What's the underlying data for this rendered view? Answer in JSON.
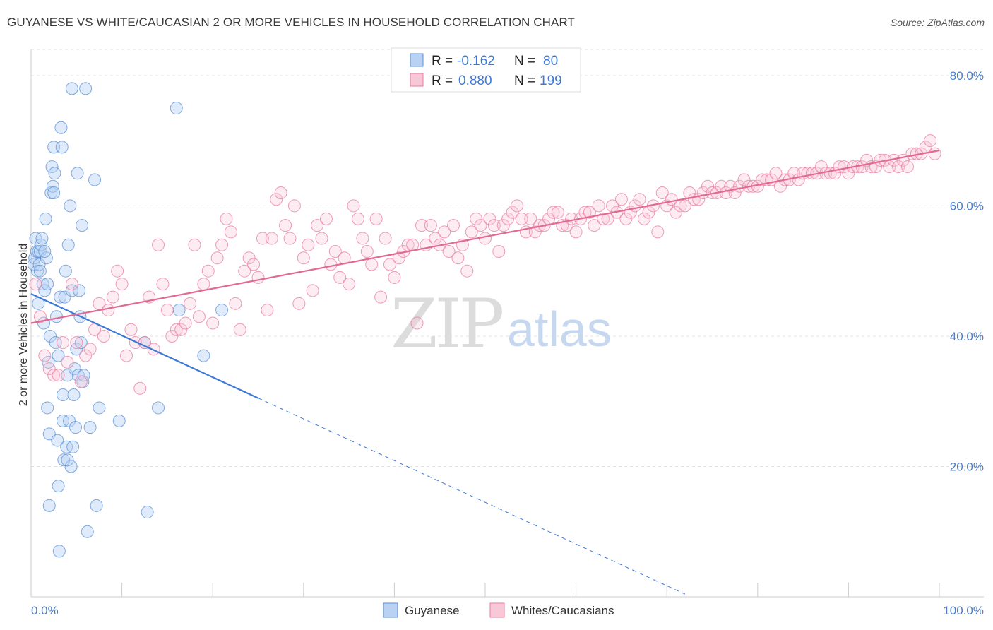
{
  "title": "GUYANESE VS WHITE/CAUCASIAN 2 OR MORE VEHICLES IN HOUSEHOLD CORRELATION CHART",
  "source": "Source: ZipAtlas.com",
  "watermark": {
    "zip": "ZIP",
    "atlas": "atlas"
  },
  "legend_top": [
    {
      "r_label": "R =",
      "r_value": "-0.162",
      "n_label": "N =",
      "n_value": "80",
      "color": "#5b8fd6"
    },
    {
      "r_label": "R =",
      "r_value": "0.880",
      "n_label": "N =",
      "n_value": "199",
      "color": "#e97ba0"
    }
  ],
  "legend_bottom": [
    {
      "label": "Guyanese",
      "color": "#5b8fd6"
    },
    {
      "label": "Whites/Caucasians",
      "color": "#e97ba0"
    }
  ],
  "chart_data": {
    "type": "scatter",
    "xlabel": "",
    "ylabel": "2 or more Vehicles in Household",
    "xlim": [
      0,
      100
    ],
    "ylim": [
      0,
      84
    ],
    "x_tick_labels": [
      "0.0%",
      "100.0%"
    ],
    "y_ticks": [
      20,
      40,
      60,
      80
    ],
    "y_tick_labels": [
      "20.0%",
      "40.0%",
      "60.0%",
      "80.0%"
    ],
    "grid": true,
    "series": [
      {
        "name": "Guyanese",
        "color": "#5b8fd6",
        "trend": {
          "x0": 0,
          "y0": 46.5,
          "x1": 25,
          "y1": 30.5,
          "dashed_to_x": 72
        },
        "points": [
          [
            0.3,
            51
          ],
          [
            0.4,
            52
          ],
          [
            0.5,
            55
          ],
          [
            0.6,
            53
          ],
          [
            0.7,
            50
          ],
          [
            0.8,
            53
          ],
          [
            0.9,
            51
          ],
          [
            1.0,
            53
          ],
          [
            1.1,
            54
          ],
          [
            1.2,
            55
          ],
          [
            1.3,
            48
          ],
          [
            1.4,
            42
          ],
          [
            1.5,
            47
          ],
          [
            1.6,
            58
          ],
          [
            1.7,
            52
          ],
          [
            1.8,
            48
          ],
          [
            1.9,
            36
          ],
          [
            2.0,
            25
          ],
          [
            2.1,
            40
          ],
          [
            2.2,
            62
          ],
          [
            2.3,
            66
          ],
          [
            2.4,
            63
          ],
          [
            2.5,
            69
          ],
          [
            2.6,
            65
          ],
          [
            2.7,
            39
          ],
          [
            2.8,
            43
          ],
          [
            2.9,
            24
          ],
          [
            3.0,
            17
          ],
          [
            3.1,
            7
          ],
          [
            3.2,
            46
          ],
          [
            3.3,
            72
          ],
          [
            3.4,
            69
          ],
          [
            3.5,
            27
          ],
          [
            3.6,
            21
          ],
          [
            3.7,
            46
          ],
          [
            3.8,
            50
          ],
          [
            3.9,
            23
          ],
          [
            4.0,
            34
          ],
          [
            4.1,
            54
          ],
          [
            4.2,
            27
          ],
          [
            4.3,
            60
          ],
          [
            4.4,
            20
          ],
          [
            4.5,
            47
          ],
          [
            4.6,
            23
          ],
          [
            4.7,
            31
          ],
          [
            4.8,
            35
          ],
          [
            4.9,
            26
          ],
          [
            5.0,
            38
          ],
          [
            5.1,
            65
          ],
          [
            5.2,
            34
          ],
          [
            5.3,
            47
          ],
          [
            5.4,
            43
          ],
          [
            5.5,
            39
          ],
          [
            5.6,
            57
          ],
          [
            5.7,
            33
          ],
          [
            5.8,
            34
          ],
          [
            6.0,
            78
          ],
          [
            6.2,
            10
          ],
          [
            6.5,
            26
          ],
          [
            7.0,
            64
          ],
          [
            7.2,
            14
          ],
          [
            7.5,
            29
          ],
          [
            9.7,
            27
          ],
          [
            12.5,
            39
          ],
          [
            12.8,
            13
          ],
          [
            14,
            29
          ],
          [
            16,
            75
          ],
          [
            16.3,
            44
          ],
          [
            19,
            37
          ],
          [
            21,
            44
          ],
          [
            2.0,
            14
          ],
          [
            1.0,
            50
          ],
          [
            0.8,
            45
          ],
          [
            3.5,
            31
          ],
          [
            4.5,
            78
          ],
          [
            2.5,
            62
          ],
          [
            1.5,
            53
          ],
          [
            3.0,
            37
          ],
          [
            4.0,
            21
          ],
          [
            1.8,
            29
          ]
        ]
      },
      {
        "name": "Whites/Caucasians",
        "color": "#e97ba0",
        "trend": {
          "x0": 0,
          "y0": 42,
          "x1": 100,
          "y1": 68.5
        },
        "points": [
          [
            0.5,
            48
          ],
          [
            1,
            43
          ],
          [
            1.5,
            37
          ],
          [
            2,
            35
          ],
          [
            2.5,
            34
          ],
          [
            3,
            34
          ],
          [
            3.5,
            39
          ],
          [
            4,
            36
          ],
          [
            4.5,
            48
          ],
          [
            5,
            39
          ],
          [
            5.5,
            33
          ],
          [
            6,
            37
          ],
          [
            6.5,
            38
          ],
          [
            7,
            41
          ],
          [
            7.5,
            45
          ],
          [
            8,
            40
          ],
          [
            8.5,
            44
          ],
          [
            9,
            46
          ],
          [
            9.5,
            50
          ],
          [
            10,
            48
          ],
          [
            10.5,
            37
          ],
          [
            11,
            41
          ],
          [
            11.5,
            39
          ],
          [
            12,
            32
          ],
          [
            12.5,
            39
          ],
          [
            13,
            46
          ],
          [
            13.5,
            38
          ],
          [
            14,
            54
          ],
          [
            14.5,
            48
          ],
          [
            15,
            44
          ],
          [
            15.5,
            40
          ],
          [
            16,
            41
          ],
          [
            16.5,
            41
          ],
          [
            17,
            42
          ],
          [
            17.5,
            45
          ],
          [
            18,
            54
          ],
          [
            18.5,
            43
          ],
          [
            19,
            48
          ],
          [
            19.5,
            50
          ],
          [
            20,
            42
          ],
          [
            20.5,
            52
          ],
          [
            21,
            54
          ],
          [
            21.5,
            58
          ],
          [
            22,
            56
          ],
          [
            22.5,
            45
          ],
          [
            23,
            41
          ],
          [
            23.5,
            50
          ],
          [
            24,
            52
          ],
          [
            24.5,
            51
          ],
          [
            25,
            49
          ],
          [
            25.5,
            55
          ],
          [
            26,
            44
          ],
          [
            26.5,
            55
          ],
          [
            27,
            61
          ],
          [
            27.5,
            62
          ],
          [
            28,
            57
          ],
          [
            28.5,
            55
          ],
          [
            29,
            60
          ],
          [
            29.5,
            45
          ],
          [
            30,
            52
          ],
          [
            30.5,
            54
          ],
          [
            31,
            47
          ],
          [
            31.5,
            57
          ],
          [
            32,
            55
          ],
          [
            32.5,
            58
          ],
          [
            33,
            51
          ],
          [
            33.5,
            53
          ],
          [
            34,
            49
          ],
          [
            34.5,
            52
          ],
          [
            35,
            48
          ],
          [
            35.5,
            60
          ],
          [
            36,
            58
          ],
          [
            36.5,
            55
          ],
          [
            37,
            53
          ],
          [
            37.5,
            51
          ],
          [
            38,
            58
          ],
          [
            38.5,
            46
          ],
          [
            39,
            55
          ],
          [
            39.5,
            51
          ],
          [
            40,
            49
          ],
          [
            40.5,
            52
          ],
          [
            41,
            53
          ],
          [
            41.5,
            54
          ],
          [
            42,
            54
          ],
          [
            42.5,
            42
          ],
          [
            43,
            57
          ],
          [
            43.5,
            54
          ],
          [
            44,
            57
          ],
          [
            44.5,
            55
          ],
          [
            45,
            54
          ],
          [
            45.5,
            56
          ],
          [
            46,
            53
          ],
          [
            46.5,
            57
          ],
          [
            47,
            52
          ],
          [
            47.5,
            54
          ],
          [
            48,
            50
          ],
          [
            48.5,
            56
          ],
          [
            49,
            58
          ],
          [
            49.5,
            57
          ],
          [
            50,
            55
          ],
          [
            50.5,
            58
          ],
          [
            51,
            57
          ],
          [
            51.5,
            53
          ],
          [
            52,
            57
          ],
          [
            52.5,
            58
          ],
          [
            53,
            59
          ],
          [
            53.5,
            60
          ],
          [
            54,
            58
          ],
          [
            54.5,
            56
          ],
          [
            55,
            58
          ],
          [
            55.5,
            56
          ],
          [
            56,
            57
          ],
          [
            56.5,
            57
          ],
          [
            57,
            58
          ],
          [
            57.5,
            59
          ],
          [
            58,
            59
          ],
          [
            58.5,
            57
          ],
          [
            59,
            57
          ],
          [
            59.5,
            58
          ],
          [
            60,
            56
          ],
          [
            60.5,
            58
          ],
          [
            61,
            59
          ],
          [
            61.5,
            59
          ],
          [
            62,
            57
          ],
          [
            62.5,
            60
          ],
          [
            63,
            58
          ],
          [
            63.5,
            58
          ],
          [
            64,
            60
          ],
          [
            64.5,
            59
          ],
          [
            65,
            61
          ],
          [
            65.5,
            58
          ],
          [
            66,
            59
          ],
          [
            66.5,
            60
          ],
          [
            67,
            61
          ],
          [
            67.5,
            58
          ],
          [
            68,
            59
          ],
          [
            68.5,
            60
          ],
          [
            69,
            56
          ],
          [
            69.5,
            62
          ],
          [
            70,
            60
          ],
          [
            70.5,
            61
          ],
          [
            71,
            59
          ],
          [
            71.5,
            60
          ],
          [
            72,
            60
          ],
          [
            72.5,
            62
          ],
          [
            73,
            61
          ],
          [
            73.5,
            61
          ],
          [
            74,
            62
          ],
          [
            74.5,
            63
          ],
          [
            75,
            62
          ],
          [
            75.5,
            62
          ],
          [
            76,
            63
          ],
          [
            76.5,
            62
          ],
          [
            77,
            63
          ],
          [
            77.5,
            62
          ],
          [
            78,
            63
          ],
          [
            78.5,
            64
          ],
          [
            79,
            63
          ],
          [
            79.5,
            63
          ],
          [
            80,
            63
          ],
          [
            80.5,
            64
          ],
          [
            81,
            64
          ],
          [
            81.5,
            64
          ],
          [
            82,
            65
          ],
          [
            82.5,
            63
          ],
          [
            83,
            64
          ],
          [
            83.5,
            64
          ],
          [
            84,
            65
          ],
          [
            84.5,
            64
          ],
          [
            85,
            65
          ],
          [
            85.5,
            65
          ],
          [
            86,
            65
          ],
          [
            86.5,
            65
          ],
          [
            87,
            66
          ],
          [
            87.5,
            65
          ],
          [
            88,
            65
          ],
          [
            88.5,
            65
          ],
          [
            89,
            66
          ],
          [
            89.5,
            66
          ],
          [
            90,
            65
          ],
          [
            90.5,
            66
          ],
          [
            91,
            66
          ],
          [
            91.5,
            66
          ],
          [
            92,
            67
          ],
          [
            92.5,
            66
          ],
          [
            93,
            66
          ],
          [
            93.5,
            67
          ],
          [
            94,
            67
          ],
          [
            94.5,
            66
          ],
          [
            95,
            67
          ],
          [
            95.5,
            66
          ],
          [
            96,
            67
          ],
          [
            96.5,
            66
          ],
          [
            97,
            68
          ],
          [
            97.5,
            68
          ],
          [
            98,
            68
          ],
          [
            98.5,
            69
          ],
          [
            99,
            70
          ],
          [
            99.5,
            68
          ]
        ]
      }
    ]
  }
}
